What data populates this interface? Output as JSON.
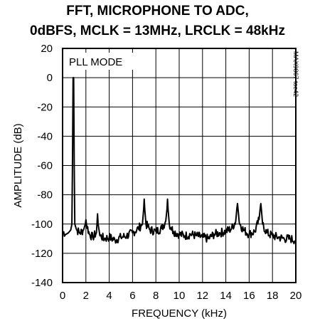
{
  "chart_data": {
    "type": "line",
    "title": "FFT, MICROPHONE TO ADC,",
    "subtitle": "0dBFS, MCLK = 13MHz, LRCLK = 48kHz",
    "xlabel": "FREQUENCY (kHz)",
    "ylabel": "AMPLITUDE (dB)",
    "xlim": [
      0,
      20
    ],
    "ylim": [
      -140,
      20
    ],
    "xticks": [
      "0",
      "2",
      "4",
      "6",
      "8",
      "10",
      "12",
      "14",
      "16",
      "18",
      "20"
    ],
    "yticks": [
      "20",
      "0",
      "-20",
      "-40",
      "-60",
      "-80",
      "-100",
      "-120",
      "-140"
    ],
    "grid": true,
    "annotation": "PLL MODE",
    "side_code": "MAX9867 toc42",
    "series": [
      {
        "values": [
          [
            0.0,
            -105
          ],
          [
            0.3,
            -107
          ],
          [
            0.5,
            -106
          ],
          [
            0.7,
            -104
          ],
          [
            0.8,
            -100
          ],
          [
            0.85,
            -60
          ],
          [
            0.9,
            0
          ],
          [
            0.95,
            0
          ],
          [
            1.0,
            -60
          ],
          [
            1.05,
            -100
          ],
          [
            1.2,
            -104
          ],
          [
            1.5,
            -106
          ],
          [
            1.8,
            -104
          ],
          [
            1.95,
            -100
          ],
          [
            2.0,
            -97
          ],
          [
            2.05,
            -100
          ],
          [
            2.3,
            -107
          ],
          [
            2.6,
            -109
          ],
          [
            2.9,
            -106
          ],
          [
            2.95,
            -100
          ],
          [
            3.0,
            -93
          ],
          [
            3.05,
            -100
          ],
          [
            3.2,
            -108
          ],
          [
            3.6,
            -110
          ],
          [
            4.0,
            -109
          ],
          [
            4.5,
            -111
          ],
          [
            5.0,
            -109
          ],
          [
            5.5,
            -108
          ],
          [
            6.0,
            -106
          ],
          [
            6.5,
            -103
          ],
          [
            6.85,
            -100
          ],
          [
            6.95,
            -90
          ],
          [
            7.0,
            -83
          ],
          [
            7.05,
            -90
          ],
          [
            7.15,
            -100
          ],
          [
            7.5,
            -104
          ],
          [
            8.0,
            -105
          ],
          [
            8.5,
            -103
          ],
          [
            8.85,
            -98
          ],
          [
            8.95,
            -90
          ],
          [
            9.0,
            -83
          ],
          [
            9.05,
            -90
          ],
          [
            9.15,
            -100
          ],
          [
            9.5,
            -105
          ],
          [
            10.0,
            -107
          ],
          [
            10.5,
            -108
          ],
          [
            11.0,
            -107
          ],
          [
            11.5,
            -108
          ],
          [
            12.0,
            -109
          ],
          [
            12.5,
            -110
          ],
          [
            13.0,
            -107
          ],
          [
            13.5,
            -106
          ],
          [
            14.0,
            -105
          ],
          [
            14.5,
            -103
          ],
          [
            14.85,
            -98
          ],
          [
            14.95,
            -89
          ],
          [
            15.0,
            -86
          ],
          [
            15.05,
            -90
          ],
          [
            15.15,
            -99
          ],
          [
            15.5,
            -104
          ],
          [
            16.0,
            -107
          ],
          [
            16.5,
            -105
          ],
          [
            16.85,
            -97
          ],
          [
            16.95,
            -89
          ],
          [
            17.0,
            -86
          ],
          [
            17.05,
            -90
          ],
          [
            17.15,
            -100
          ],
          [
            17.5,
            -106
          ],
          [
            18.0,
            -108
          ],
          [
            18.5,
            -109
          ],
          [
            19.0,
            -110
          ],
          [
            19.5,
            -110
          ],
          [
            20.0,
            -111
          ]
        ]
      }
    ]
  }
}
